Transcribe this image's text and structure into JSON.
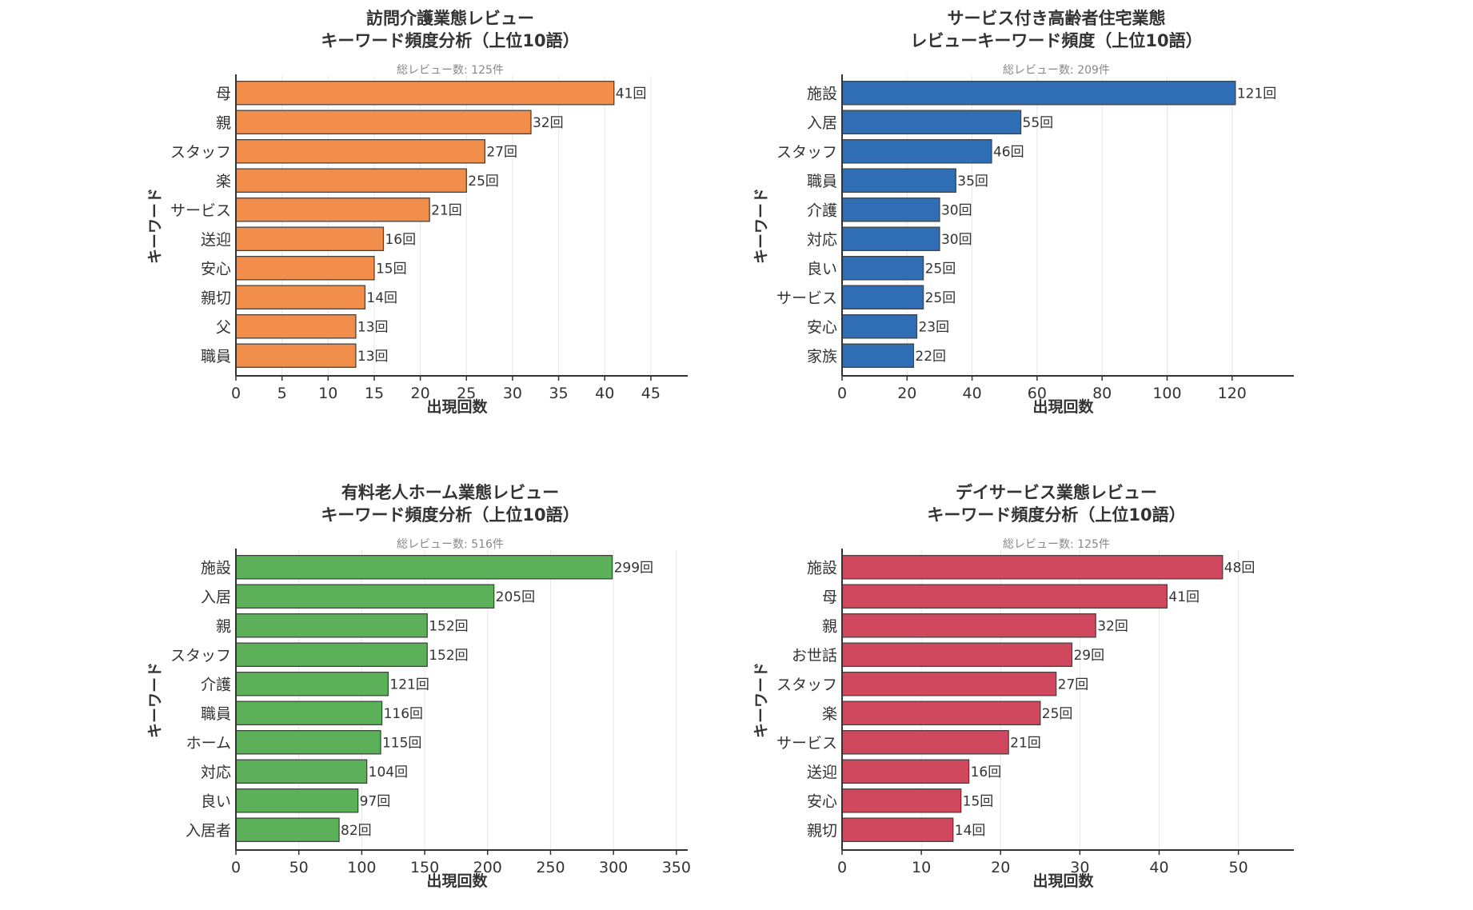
{
  "chart_data": [
    {
      "type": "bar",
      "orientation": "horizontal",
      "title_line1": "訪問介護業態レビュー",
      "title_line2": "キーワード頻度分析（上位10語）",
      "subtitle": "総レビュー数: 125件",
      "categories": [
        "母",
        "親",
        "スタッフ",
        "楽",
        "サービス",
        "送迎",
        "安心",
        "親切",
        "父",
        "職員"
      ],
      "values": [
        41,
        32,
        27,
        25,
        21,
        16,
        15,
        14,
        13,
        13
      ],
      "value_labels": [
        "41回",
        "32回",
        "27回",
        "25回",
        "21回",
        "16回",
        "15回",
        "14回",
        "13回",
        "13回"
      ],
      "xlabel": "出現回数",
      "ylabel": "キーワード",
      "xlim": [
        0,
        49
      ],
      "xticks": [
        0,
        5,
        10,
        15,
        20,
        25,
        30,
        35,
        40,
        45
      ],
      "xtick_labels": [
        "0",
        "5",
        "10",
        "15",
        "20",
        "25",
        "30",
        "35",
        "40",
        "45"
      ],
      "color": "#F28E4C"
    },
    {
      "type": "bar",
      "orientation": "horizontal",
      "title_line1": "サービス付き高齢者住宅業態",
      "title_line2": "レビューキーワード頻度（上位10語）",
      "subtitle": "総レビュー数: 209件",
      "categories": [
        "施設",
        "入居",
        "スタッフ",
        "職員",
        "介護",
        "対応",
        "良い",
        "サービス",
        "安心",
        "家族"
      ],
      "values": [
        121,
        55,
        46,
        35,
        30,
        30,
        25,
        25,
        23,
        22
      ],
      "value_labels": [
        "121回",
        "55回",
        "46回",
        "35回",
        "30回",
        "30回",
        "25回",
        "25回",
        "23回",
        "22回"
      ],
      "xlabel": "出現回数",
      "ylabel": "キーワード",
      "xlim": [
        0,
        139
      ],
      "xticks": [
        0,
        20,
        40,
        60,
        80,
        100,
        120
      ],
      "xtick_labels": [
        "0",
        "20",
        "40",
        "60",
        "80",
        "100",
        "120"
      ],
      "color": "#2F6DB5"
    },
    {
      "type": "bar",
      "orientation": "horizontal",
      "title_line1": "有料老人ホーム業態レビュー",
      "title_line2": "キーワード頻度分析（上位10語）",
      "subtitle": "総レビュー数: 516件",
      "categories": [
        "施設",
        "入居",
        "親",
        "スタッフ",
        "介護",
        "職員",
        "ホーム",
        "対応",
        "良い",
        "入居者"
      ],
      "values": [
        299,
        205,
        152,
        152,
        121,
        116,
        115,
        104,
        97,
        82
      ],
      "value_labels": [
        "299回",
        "205回",
        "152回",
        "152回",
        "121回",
        "116回",
        "115回",
        "104回",
        "97回",
        "82回"
      ],
      "xlabel": "出現回数",
      "ylabel": "キーワード",
      "xlim": [
        0,
        359
      ],
      "xticks": [
        0,
        50,
        100,
        150,
        200,
        250,
        300,
        350
      ],
      "xtick_labels": [
        "0",
        "50",
        "100",
        "150",
        "200",
        "250",
        "300",
        "350"
      ],
      "color": "#5DB05A"
    },
    {
      "type": "bar",
      "orientation": "horizontal",
      "title_line1": "デイサービス業態レビュー",
      "title_line2": "キーワード頻度分析（上位10語）",
      "subtitle": "総レビュー数: 125件",
      "categories": [
        "施設",
        "母",
        "親",
        "お世話",
        "スタッフ",
        "楽",
        "サービス",
        "送迎",
        "安心",
        "親切"
      ],
      "values": [
        48,
        41,
        32,
        29,
        27,
        25,
        21,
        16,
        15,
        14
      ],
      "value_labels": [
        "48回",
        "41回",
        "32回",
        "29回",
        "27回",
        "25回",
        "21回",
        "16回",
        "15回",
        "14回"
      ],
      "xlabel": "出現回数",
      "ylabel": "キーワード",
      "xlim": [
        0,
        57
      ],
      "xticks": [
        0,
        10,
        20,
        30,
        40,
        50
      ],
      "xtick_labels": [
        "0",
        "10",
        "20",
        "30",
        "40",
        "50"
      ],
      "color": "#D0485E"
    }
  ]
}
